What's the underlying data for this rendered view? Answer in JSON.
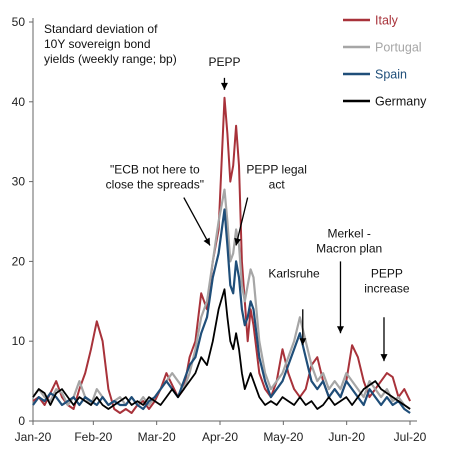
{
  "chart_data": {
    "type": "line",
    "title_lines": [
      "Standard deviation of",
      "10Y sovereign bond",
      "yields (weekly range; bp)"
    ],
    "xlabel": "",
    "ylabel": "",
    "ylim": [
      0,
      50
    ],
    "y_ticks": [
      0,
      10,
      20,
      30,
      40,
      50
    ],
    "x_ticks": [
      "Jan-20",
      "Feb-20",
      "Mar-20",
      "Apr-20",
      "May-20",
      "Jun-20",
      "Jul-20"
    ],
    "grid": false,
    "legend_position": "top-right",
    "x_count": 132,
    "series": [
      {
        "name": "Italy",
        "color": "#a8323a",
        "width": 2,
        "points": [
          [
            0,
            2.5
          ],
          [
            2,
            3
          ],
          [
            4,
            2
          ],
          [
            6,
            3.5
          ],
          [
            8,
            5
          ],
          [
            10,
            3
          ],
          [
            12,
            2
          ],
          [
            14,
            1.5
          ],
          [
            16,
            4
          ],
          [
            18,
            6
          ],
          [
            20,
            9
          ],
          [
            22,
            12.5
          ],
          [
            24,
            10
          ],
          [
            26,
            4
          ],
          [
            28,
            1.5
          ],
          [
            30,
            1
          ],
          [
            32,
            1.5
          ],
          [
            34,
            1
          ],
          [
            36,
            2
          ],
          [
            38,
            2.5
          ],
          [
            40,
            1.5
          ],
          [
            42,
            2.5
          ],
          [
            44,
            4
          ],
          [
            46,
            6
          ],
          [
            48,
            4.5
          ],
          [
            50,
            3
          ],
          [
            52,
            4
          ],
          [
            54,
            8
          ],
          [
            56,
            10
          ],
          [
            58,
            16
          ],
          [
            60,
            14
          ],
          [
            62,
            20
          ],
          [
            64,
            24
          ],
          [
            66,
            40.5
          ],
          [
            67,
            36
          ],
          [
            68,
            30
          ],
          [
            69,
            32
          ],
          [
            70,
            37
          ],
          [
            71,
            32
          ],
          [
            72,
            20
          ],
          [
            73,
            15
          ],
          [
            74,
            10
          ],
          [
            75,
            14
          ],
          [
            76,
            12
          ],
          [
            78,
            6
          ],
          [
            80,
            4
          ],
          [
            82,
            3
          ],
          [
            84,
            5
          ],
          [
            86,
            9
          ],
          [
            88,
            6
          ],
          [
            90,
            4
          ],
          [
            92,
            3
          ],
          [
            94,
            4
          ],
          [
            96,
            7
          ],
          [
            98,
            8
          ],
          [
            100,
            5
          ],
          [
            102,
            3
          ],
          [
            104,
            4
          ],
          [
            106,
            3
          ],
          [
            108,
            5
          ],
          [
            110,
            9.5
          ],
          [
            112,
            8
          ],
          [
            114,
            5
          ],
          [
            116,
            3
          ],
          [
            118,
            4
          ],
          [
            120,
            5
          ],
          [
            122,
            6
          ],
          [
            124,
            5.5
          ],
          [
            126,
            3
          ],
          [
            128,
            4
          ],
          [
            130,
            2.5
          ]
        ]
      },
      {
        "name": "Portugal",
        "color": "#a6a6a6",
        "width": 2.2,
        "points": [
          [
            0,
            3
          ],
          [
            2,
            4
          ],
          [
            4,
            3
          ],
          [
            6,
            2.5
          ],
          [
            8,
            4
          ],
          [
            10,
            3.5
          ],
          [
            12,
            2
          ],
          [
            14,
            3
          ],
          [
            16,
            5
          ],
          [
            18,
            3
          ],
          [
            20,
            2
          ],
          [
            22,
            4
          ],
          [
            24,
            3
          ],
          [
            26,
            2
          ],
          [
            28,
            2.5
          ],
          [
            30,
            3
          ],
          [
            32,
            2
          ],
          [
            34,
            3
          ],
          [
            36,
            2
          ],
          [
            38,
            3
          ],
          [
            40,
            2
          ],
          [
            42,
            3
          ],
          [
            44,
            4
          ],
          [
            46,
            5
          ],
          [
            48,
            6
          ],
          [
            50,
            5
          ],
          [
            52,
            4
          ],
          [
            54,
            6
          ],
          [
            56,
            9
          ],
          [
            58,
            13
          ],
          [
            60,
            15
          ],
          [
            62,
            20
          ],
          [
            64,
            25
          ],
          [
            66,
            29
          ],
          [
            67,
            25
          ],
          [
            68,
            20
          ],
          [
            69,
            21
          ],
          [
            70,
            24
          ],
          [
            71,
            22
          ],
          [
            72,
            17
          ],
          [
            73,
            15
          ],
          [
            74,
            17
          ],
          [
            75,
            19
          ],
          [
            76,
            18
          ],
          [
            78,
            10
          ],
          [
            80,
            6
          ],
          [
            82,
            4
          ],
          [
            84,
            5
          ],
          [
            86,
            6
          ],
          [
            88,
            8
          ],
          [
            90,
            10
          ],
          [
            92,
            13
          ],
          [
            94,
            10
          ],
          [
            96,
            7
          ],
          [
            98,
            5
          ],
          [
            100,
            6
          ],
          [
            102,
            4
          ],
          [
            104,
            5
          ],
          [
            106,
            4
          ],
          [
            108,
            6
          ],
          [
            110,
            5
          ],
          [
            112,
            4
          ],
          [
            114,
            3
          ],
          [
            116,
            5
          ],
          [
            118,
            4
          ],
          [
            120,
            3
          ],
          [
            122,
            4
          ],
          [
            124,
            2.5
          ],
          [
            126,
            3
          ],
          [
            128,
            2
          ],
          [
            130,
            1.5
          ]
        ]
      },
      {
        "name": "Spain",
        "color": "#1f4e79",
        "width": 2.2,
        "points": [
          [
            0,
            2
          ],
          [
            2,
            3
          ],
          [
            4,
            2.5
          ],
          [
            6,
            3.5
          ],
          [
            8,
            3
          ],
          [
            10,
            2
          ],
          [
            12,
            2.5
          ],
          [
            14,
            3
          ],
          [
            16,
            2
          ],
          [
            18,
            3
          ],
          [
            20,
            2.5
          ],
          [
            22,
            2
          ],
          [
            24,
            3
          ],
          [
            26,
            2
          ],
          [
            28,
            2.5
          ],
          [
            30,
            2
          ],
          [
            32,
            2
          ],
          [
            34,
            3
          ],
          [
            36,
            2
          ],
          [
            38,
            1.5
          ],
          [
            40,
            2.5
          ],
          [
            42,
            3
          ],
          [
            44,
            4
          ],
          [
            46,
            5
          ],
          [
            48,
            4
          ],
          [
            50,
            3
          ],
          [
            52,
            5
          ],
          [
            54,
            7
          ],
          [
            56,
            8
          ],
          [
            58,
            11
          ],
          [
            60,
            13
          ],
          [
            62,
            18
          ],
          [
            64,
            21
          ],
          [
            66,
            26.5
          ],
          [
            67,
            22
          ],
          [
            68,
            17
          ],
          [
            69,
            16
          ],
          [
            70,
            20
          ],
          [
            71,
            18
          ],
          [
            72,
            14
          ],
          [
            73,
            12
          ],
          [
            74,
            13
          ],
          [
            75,
            15
          ],
          [
            76,
            14
          ],
          [
            78,
            8
          ],
          [
            80,
            5
          ],
          [
            82,
            3
          ],
          [
            84,
            4
          ],
          [
            86,
            5
          ],
          [
            88,
            7
          ],
          [
            90,
            9
          ],
          [
            92,
            11
          ],
          [
            94,
            8
          ],
          [
            96,
            5
          ],
          [
            98,
            4
          ],
          [
            100,
            5
          ],
          [
            102,
            3
          ],
          [
            104,
            4
          ],
          [
            106,
            3
          ],
          [
            108,
            5
          ],
          [
            110,
            4
          ],
          [
            112,
            3
          ],
          [
            114,
            2
          ],
          [
            116,
            4
          ],
          [
            118,
            3
          ],
          [
            120,
            2
          ],
          [
            122,
            3
          ],
          [
            124,
            2
          ],
          [
            126,
            2.5
          ],
          [
            128,
            1.5
          ],
          [
            130,
            1
          ]
        ]
      },
      {
        "name": "Germany",
        "color": "#000000",
        "width": 1.8,
        "points": [
          [
            0,
            3
          ],
          [
            2,
            4
          ],
          [
            4,
            3.5
          ],
          [
            6,
            2
          ],
          [
            8,
            3.5
          ],
          [
            10,
            4
          ],
          [
            12,
            3
          ],
          [
            14,
            2
          ],
          [
            16,
            3
          ],
          [
            18,
            2.5
          ],
          [
            20,
            2
          ],
          [
            22,
            3
          ],
          [
            24,
            2
          ],
          [
            26,
            1.5
          ],
          [
            28,
            2
          ],
          [
            30,
            2.5
          ],
          [
            32,
            3
          ],
          [
            34,
            2
          ],
          [
            36,
            2.5
          ],
          [
            38,
            2
          ],
          [
            40,
            3
          ],
          [
            42,
            2.5
          ],
          [
            44,
            2
          ],
          [
            46,
            3
          ],
          [
            48,
            4
          ],
          [
            50,
            3
          ],
          [
            52,
            4
          ],
          [
            54,
            5
          ],
          [
            56,
            6
          ],
          [
            58,
            8
          ],
          [
            60,
            7
          ],
          [
            62,
            10
          ],
          [
            64,
            14
          ],
          [
            66,
            16.5
          ],
          [
            67,
            13
          ],
          [
            68,
            10
          ],
          [
            69,
            9
          ],
          [
            70,
            11
          ],
          [
            71,
            9
          ],
          [
            72,
            6
          ],
          [
            73,
            4
          ],
          [
            74,
            5
          ],
          [
            75,
            6
          ],
          [
            76,
            5
          ],
          [
            78,
            3
          ],
          [
            80,
            2
          ],
          [
            82,
            2.5
          ],
          [
            84,
            2
          ],
          [
            86,
            3
          ],
          [
            88,
            2.5
          ],
          [
            90,
            2
          ],
          [
            92,
            3
          ],
          [
            94,
            2
          ],
          [
            96,
            2.5
          ],
          [
            98,
            1.5
          ],
          [
            100,
            2
          ],
          [
            102,
            3
          ],
          [
            104,
            2
          ],
          [
            106,
            2.5
          ],
          [
            108,
            3
          ],
          [
            110,
            2
          ],
          [
            112,
            3
          ],
          [
            114,
            4
          ],
          [
            116,
            4.5
          ],
          [
            118,
            5
          ],
          [
            120,
            4
          ],
          [
            122,
            3.5
          ],
          [
            124,
            3
          ],
          [
            126,
            2.5
          ],
          [
            128,
            2
          ],
          [
            130,
            1.5
          ]
        ]
      }
    ],
    "annotations": [
      {
        "lines": [
          "PEPP"
        ],
        "x": 66,
        "y": 44.5,
        "anchor": "middle"
      },
      {
        "lines": [
          "\"ECB not here to",
          "close the spreads\""
        ],
        "x": 42,
        "y": 31,
        "anchor": "middle"
      },
      {
        "lines": [
          "PEPP legal",
          "act"
        ],
        "x": 84,
        "y": 31,
        "anchor": "middle"
      },
      {
        "lines": [
          "Merkel -",
          "Macron plan"
        ],
        "x": 109,
        "y": 23,
        "anchor": "middle"
      },
      {
        "lines": [
          "Karlsruhe"
        ],
        "x": 90,
        "y": 18,
        "anchor": "middle"
      },
      {
        "lines": [
          "PEPP",
          "increase"
        ],
        "x": 122,
        "y": 18,
        "anchor": "middle"
      }
    ],
    "arrows": [
      {
        "from": [
          66,
          43
        ],
        "to": [
          66,
          41.5
        ]
      },
      {
        "from": [
          52,
          28
        ],
        "to": [
          61,
          22
        ]
      },
      {
        "from": [
          74,
          28
        ],
        "to": [
          70,
          22
        ]
      },
      {
        "from": [
          93,
          14
        ],
        "to": [
          93,
          9.5
        ]
      },
      {
        "from": [
          106,
          20
        ],
        "to": [
          106,
          11
        ]
      },
      {
        "from": [
          121,
          13
        ],
        "to": [
          121,
          7.5
        ]
      }
    ]
  }
}
